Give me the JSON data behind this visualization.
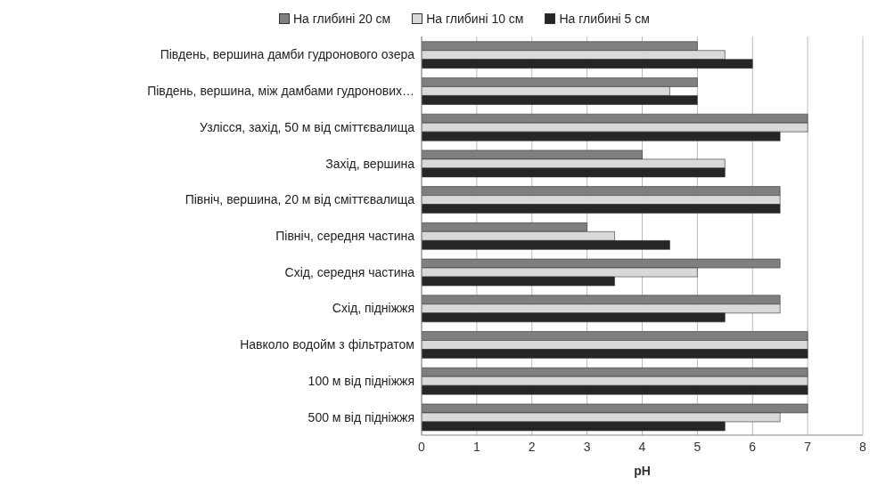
{
  "chart_data": {
    "type": "bar",
    "orientation": "horizontal",
    "xlabel": "pH",
    "categories": [
      "Південь, вершина дамби гудронового озера",
      "Південь, вершина, між дамбами гудронових…",
      "Узлісся, захід, 50 м від сміттєвалища",
      "Захід, вершина",
      "Північ, вершина, 20 м від сміттєвалища",
      "Північ, середня частина",
      "Схід, середня частина",
      "Схід, підніжжя",
      "Навколо водойм з фільтратом",
      "100 м від підніжжя",
      "500 м від підніжжя"
    ],
    "series": [
      {
        "name": "На глибині 20 см",
        "color": "#7f7f7f",
        "values": [
          5,
          5,
          7,
          4,
          6.5,
          3,
          6.5,
          6.5,
          7,
          7,
          7
        ]
      },
      {
        "name": "На глибині 10 см",
        "color": "#d9d9d9",
        "values": [
          5.5,
          4.5,
          7,
          5.5,
          6.5,
          3.5,
          5,
          6.5,
          7,
          7,
          6.5
        ]
      },
      {
        "name": "На глибині 5 см",
        "color": "#262626",
        "values": [
          6,
          5,
          6.5,
          5.5,
          6.5,
          4.5,
          3.5,
          5.5,
          7,
          7,
          5.5
        ]
      }
    ],
    "xlim": [
      0,
      8
    ],
    "xticks": [
      0,
      1,
      2,
      3,
      4,
      5,
      6,
      7,
      8
    ],
    "grid": "x",
    "legend": "top"
  }
}
